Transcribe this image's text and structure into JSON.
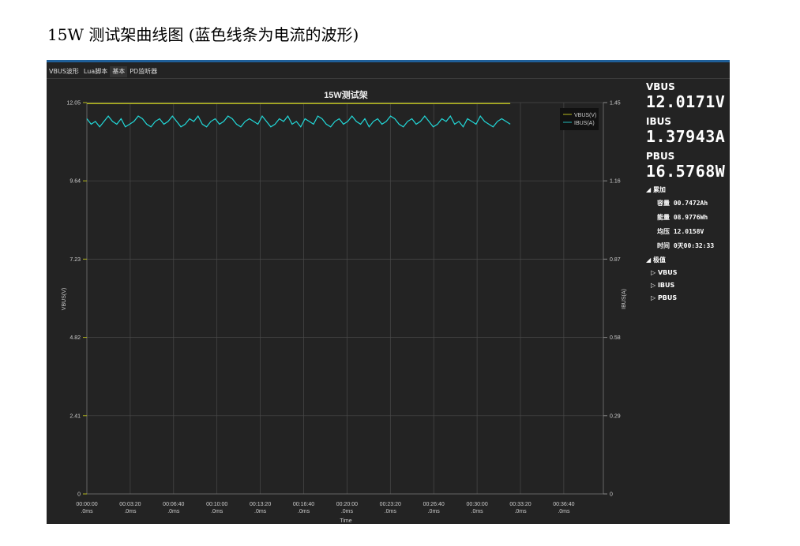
{
  "doc_title": "15W 测试架曲线图 (蓝色线条为电流的波形)",
  "tabs": [
    {
      "label": "VBUS波形"
    },
    {
      "label": "Lua脚本"
    },
    {
      "label": "基本",
      "active": true
    },
    {
      "label": "PD监听器"
    }
  ],
  "panel": {
    "vbus_label": "VBUS",
    "vbus_value": "12.0171V",
    "ibus_label": "IBUS",
    "ibus_value": "1.37943A",
    "pbus_label": "PBUS",
    "pbus_value": "16.5768W",
    "accum_label": "累加",
    "accum": [
      {
        "k": "容量",
        "v": "00.7472Ah"
      },
      {
        "k": "能量",
        "v": "08.9776Wh"
      },
      {
        "k": "均压",
        "v": "12.0158V"
      },
      {
        "k": "时间",
        "v": "0天00:32:33"
      }
    ],
    "extreme_label": "极值",
    "extreme": [
      "VBUS",
      "IBUS",
      "PBUS"
    ]
  },
  "colors": {
    "vbus": "#b5b81e",
    "ibus": "#22d8d8",
    "bg": "#232323",
    "grid": "#4a4a4a"
  },
  "chart_data": {
    "type": "line",
    "title": "15W测试架",
    "xlabel": "Time",
    "ylabel_left": "VBUS(V)",
    "ylabel_right": "IBUS(A)",
    "ylim_left": [
      0,
      12.05
    ],
    "ylim_right": [
      0,
      1.45
    ],
    "yticks_left": [
      "12.05",
      "9.64",
      "7.23",
      "4.82",
      "2.41",
      "0"
    ],
    "yticks_right": [
      "1.45",
      "1.16",
      "0.87",
      "0.58",
      "0.29",
      "0"
    ],
    "xticks": [
      [
        "00:00:00",
        ".0ms"
      ],
      [
        "00:03:20",
        ".0ms"
      ],
      [
        "00:06:40",
        ".0ms"
      ],
      [
        "00:10:00",
        ".0ms"
      ],
      [
        "00:13:20",
        ".0ms"
      ],
      [
        "00:16:40",
        ".0ms"
      ],
      [
        "00:20:00",
        ".0ms"
      ],
      [
        "00:23:20",
        ".0ms"
      ],
      [
        "00:26:40",
        ".0ms"
      ],
      [
        "00:30:00",
        ".0ms"
      ],
      [
        "00:33:20",
        ".0ms"
      ],
      [
        "00:36:40",
        ".0ms"
      ]
    ],
    "xlim_seconds": [
      0,
      2400
    ],
    "grid": true,
    "legend": "top-right",
    "series": [
      {
        "name": "VBUS(V)",
        "axis": "left",
        "x_end_seconds": 1953,
        "values": [
          12.02,
          12.02,
          12.02,
          12.02,
          12.02
        ]
      },
      {
        "name": "IBUS(A)",
        "axis": "right",
        "x_end_seconds": 1953,
        "values": [
          1.39,
          1.37,
          1.38,
          1.36,
          1.38,
          1.4,
          1.38,
          1.37,
          1.39,
          1.36,
          1.37,
          1.38,
          1.4,
          1.39,
          1.37,
          1.36,
          1.38,
          1.39,
          1.37,
          1.38,
          1.4,
          1.38,
          1.36,
          1.37,
          1.39,
          1.38,
          1.4,
          1.37,
          1.36,
          1.38,
          1.39,
          1.37,
          1.38,
          1.4,
          1.39,
          1.37,
          1.36,
          1.38,
          1.39,
          1.38,
          1.37,
          1.4,
          1.38,
          1.36,
          1.37,
          1.39,
          1.38,
          1.4,
          1.37,
          1.38,
          1.36,
          1.39,
          1.38,
          1.37,
          1.4,
          1.39,
          1.37,
          1.36,
          1.38,
          1.39,
          1.37,
          1.38,
          1.4,
          1.38,
          1.37,
          1.39,
          1.36,
          1.38,
          1.39,
          1.37,
          1.38,
          1.4,
          1.39,
          1.37,
          1.36,
          1.38,
          1.39,
          1.37,
          1.38,
          1.4,
          1.38,
          1.36,
          1.37,
          1.39,
          1.38,
          1.4,
          1.37,
          1.38,
          1.36,
          1.39,
          1.38,
          1.37,
          1.4,
          1.38,
          1.37,
          1.36,
          1.38,
          1.39,
          1.38,
          1.37
        ]
      }
    ]
  }
}
